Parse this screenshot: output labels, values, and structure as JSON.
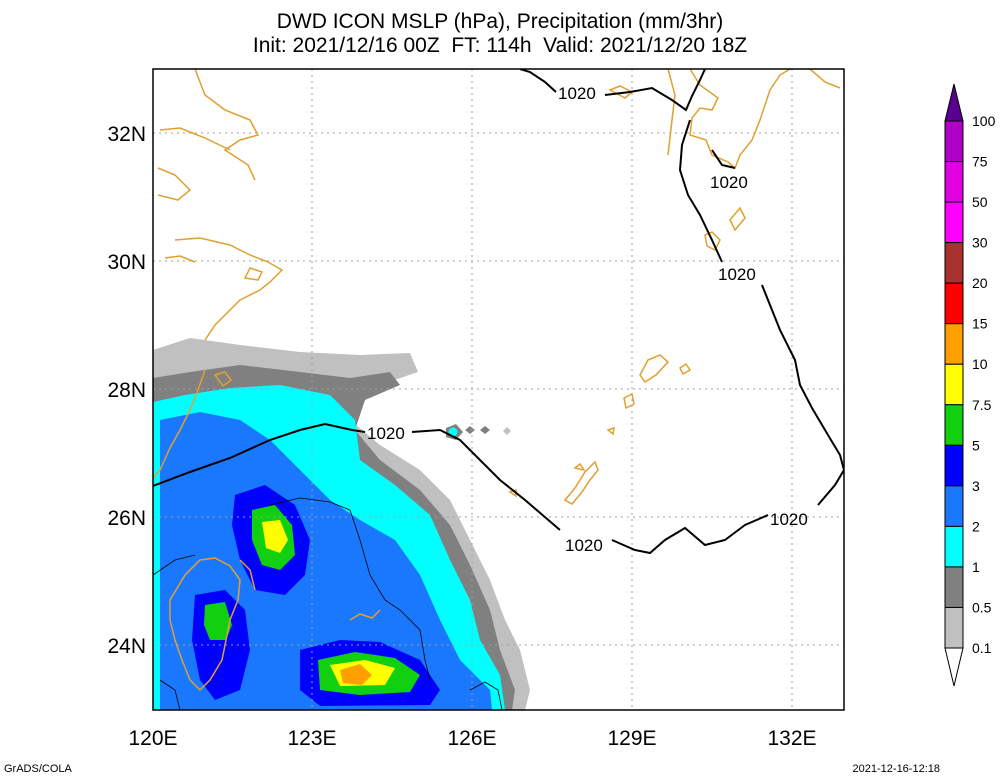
{
  "title": {
    "line1": "DWD ICON MSLP (hPa), Precipitation (mm/3hr)",
    "line2": "Init: 2021/12/16 00Z  FT: 114h  Valid: 2021/12/20 18Z"
  },
  "axes": {
    "lat_labels": [
      "32N",
      "30N",
      "28N",
      "26N",
      "24N"
    ],
    "lon_labels": [
      "120E",
      "123E",
      "126E",
      "129E",
      "132E"
    ]
  },
  "isobar_labels": [
    "1020",
    "1020",
    "1020",
    "1020",
    "1020",
    "1020"
  ],
  "colorbar": {
    "levels": [
      "100",
      "75",
      "50",
      "30",
      "20",
      "15",
      "10",
      "7.5",
      "5",
      "3",
      "2",
      "1",
      "0.5",
      "0.1"
    ],
    "colors": [
      "#8a00a8",
      "#b000c8",
      "#e000e0",
      "#ff00ff",
      "#a8322d",
      "#ff0000",
      "#ffa000",
      "#ffff00",
      "#10d010",
      "#0000ff",
      "#1a78ff",
      "#00ffff",
      "#808080",
      "#c0c0c0",
      "#ffffff"
    ]
  },
  "colors": {
    "coast": "#e0a030",
    "grid": "#a0a0a0"
  },
  "footer": {
    "left": "GrADS/COLA",
    "right": "2021-12-16-12:18"
  }
}
